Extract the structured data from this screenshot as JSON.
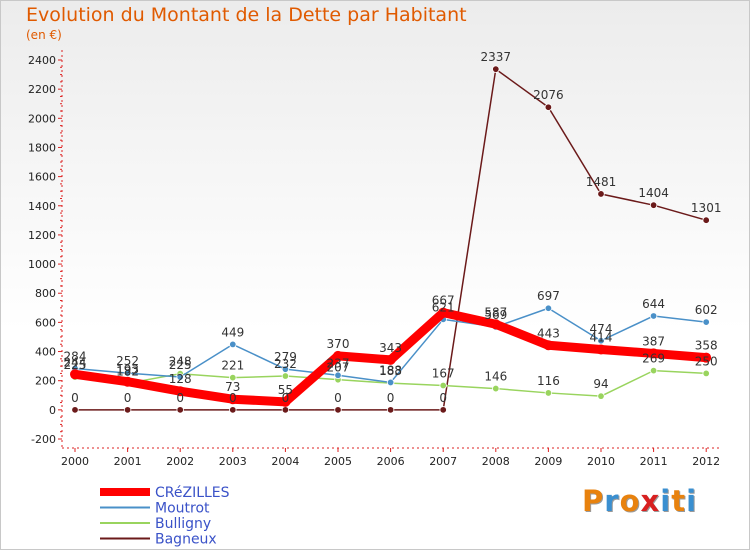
{
  "chart_data": {
    "type": "line",
    "title": "Evolution du Montant de la Dette par Habitant",
    "unit_label": "(en €)",
    "categories": [
      "2000",
      "2001",
      "2002",
      "2003",
      "2004",
      "2005",
      "2006",
      "2007",
      "2008",
      "2009",
      "2010",
      "2011",
      "2012"
    ],
    "ylim": [
      -200,
      2400
    ],
    "yticks": [
      -200,
      0,
      200,
      400,
      600,
      800,
      1000,
      1200,
      1400,
      1600,
      1800,
      2000,
      2200,
      2400
    ],
    "grid": false,
    "legend_position": "bottom-left",
    "series": [
      {
        "name": "CRéZILLES",
        "color": "#ff0000",
        "values": [
          244,
          193,
          128,
          73,
          55,
          370,
          343,
          667,
          587,
          443,
          414,
          387,
          358
        ],
        "labels": [
          "244",
          "193",
          "128",
          "73",
          "55",
          "370",
          "343",
          "667",
          "587",
          "443",
          "414",
          "387",
          "358"
        ]
      },
      {
        "name": "Moutrot",
        "color": "#4a90c8",
        "values": [
          284,
          252,
          225,
          449,
          279,
          237,
          188,
          621,
          569,
          697,
          474,
          644,
          602
        ],
        "labels": [
          "284",
          "252",
          "225",
          "449",
          "279",
          "237",
          "188",
          "621",
          "569",
          "697",
          "474",
          "644",
          "602"
        ]
      },
      {
        "name": "Bulligny",
        "color": "#99d45e",
        "values": [
          225,
          182,
          248,
          221,
          232,
          207,
          183,
          167,
          146,
          116,
          94,
          269,
          250
        ],
        "labels": [
          "225",
          "182",
          "248",
          "221",
          "232",
          "207",
          "183",
          "167",
          "146",
          "116",
          "94",
          "269",
          "250"
        ]
      },
      {
        "name": "Bagneux",
        "color": "#6b1a1a",
        "values": [
          0,
          0,
          0,
          0,
          0,
          0,
          0,
          0,
          2337,
          2076,
          1481,
          1404,
          1301
        ],
        "labels": [
          "0",
          "0",
          "0",
          "0",
          "0",
          "0",
          "0",
          "0",
          "2337",
          "2076",
          "1481",
          "1404",
          "1301"
        ]
      }
    ]
  },
  "branding": {
    "logo_letters": [
      "P",
      "r",
      "o",
      "x",
      "i",
      "t",
      "i"
    ],
    "logo_colors": [
      "#e8820e",
      "#3a8fd0",
      "#e8820e",
      "#d82020",
      "#3a8fd0",
      "#e8820e",
      "#3a8fd0"
    ]
  }
}
